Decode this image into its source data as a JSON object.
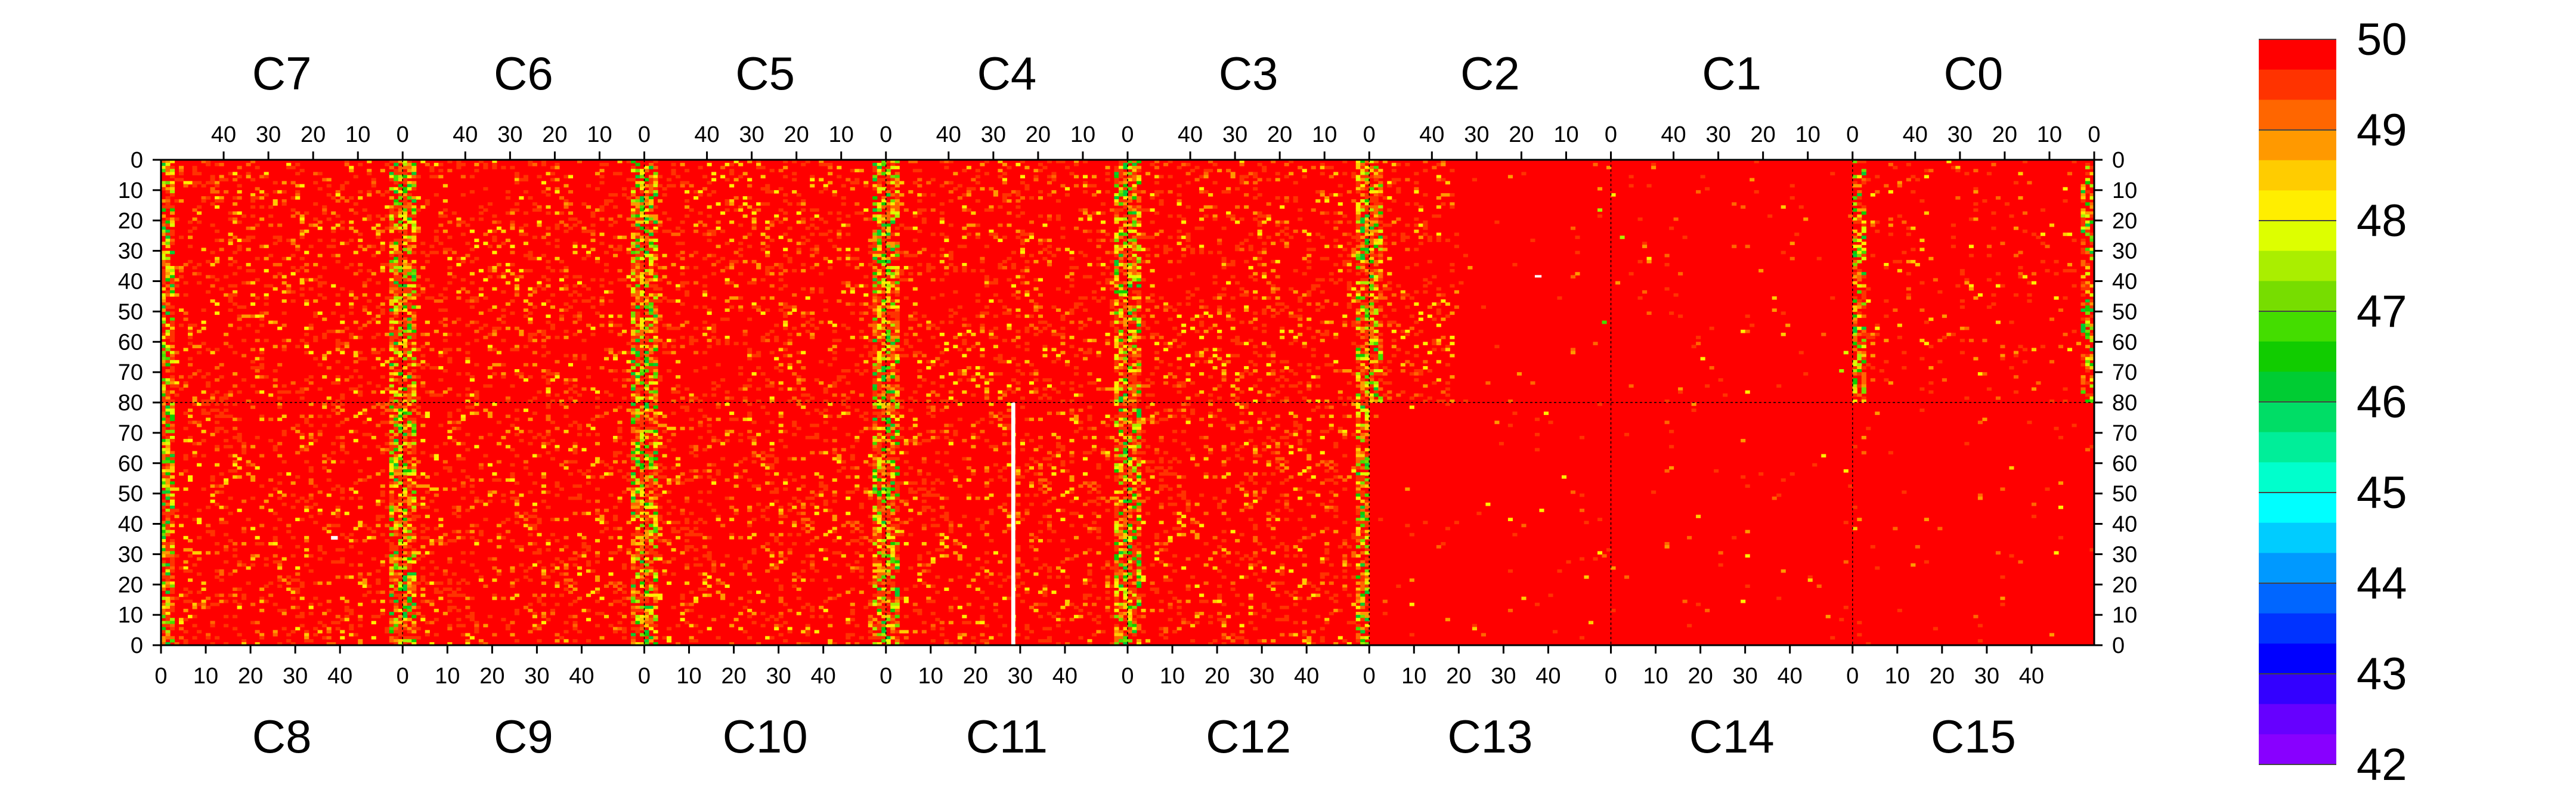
{
  "chart_data": {
    "type": "heatmap",
    "colorscale": {
      "min": 42,
      "max": 50,
      "ticks": [
        50,
        49,
        48,
        47,
        46,
        45,
        44,
        43,
        42
      ],
      "colors": [
        "#ff0000",
        "#ff3300",
        "#ff6600",
        "#ff9900",
        "#ffcc00",
        "#ffee00",
        "#ddff00",
        "#aaee00",
        "#77dd00",
        "#44dd00",
        "#11cc00",
        "#00cc33",
        "#00dd66",
        "#00ee99",
        "#00ffcc",
        "#00ffff",
        "#00ccff",
        "#0099ff",
        "#0066ff",
        "#0033ff",
        "#0000ff",
        "#3300ff",
        "#6600ff",
        "#8800ff"
      ]
    },
    "top_columns": [
      {
        "name": "C7",
        "xticks": [
          "40",
          "30",
          "20",
          "10",
          "0"
        ]
      },
      {
        "name": "C6",
        "xticks": [
          "40",
          "30",
          "20",
          "10",
          "0"
        ]
      },
      {
        "name": "C5",
        "xticks": [
          "40",
          "30",
          "20",
          "10",
          "0"
        ]
      },
      {
        "name": "C4",
        "xticks": [
          "40",
          "30",
          "20",
          "10",
          "0"
        ]
      },
      {
        "name": "C3",
        "xticks": [
          "40",
          "30",
          "20",
          "10",
          "0"
        ]
      },
      {
        "name": "C2",
        "xticks": [
          "40",
          "30",
          "20",
          "10",
          "0"
        ]
      },
      {
        "name": "C1",
        "xticks": [
          "40",
          "30",
          "20",
          "10",
          "0"
        ]
      },
      {
        "name": "C0",
        "xticks": [
          "40",
          "30",
          "20",
          "10",
          "0"
        ]
      }
    ],
    "bottom_columns": [
      {
        "name": "C8",
        "xticks": [
          "0",
          "10",
          "20",
          "30",
          "40"
        ]
      },
      {
        "name": "C9",
        "xticks": [
          "0",
          "10",
          "20",
          "30",
          "40"
        ]
      },
      {
        "name": "C10",
        "xticks": [
          "0",
          "10",
          "20",
          "30",
          "40"
        ]
      },
      {
        "name": "C11",
        "xticks": [
          "0",
          "10",
          "20",
          "30",
          "40"
        ]
      },
      {
        "name": "C12",
        "xticks": [
          "0",
          "10",
          "20",
          "30",
          "40"
        ]
      },
      {
        "name": "C13",
        "xticks": [
          "0",
          "10",
          "20",
          "30",
          "40"
        ]
      },
      {
        "name": "C14",
        "xticks": [
          "0",
          "10",
          "20",
          "30",
          "40"
        ]
      },
      {
        "name": "C15",
        "xticks": [
          "0",
          "10",
          "20",
          "30",
          "40"
        ]
      }
    ],
    "yticks_top": [
      "0",
      "10",
      "20",
      "30",
      "40",
      "50",
      "60",
      "70",
      "80"
    ],
    "yticks_bottom": [
      "80",
      "70",
      "60",
      "50",
      "40",
      "30",
      "20",
      "10",
      "0"
    ],
    "x_range_per_column": [
      0,
      54
    ],
    "y_range_per_half": [
      0,
      80
    ],
    "dominant_value": 50,
    "notes_visible": "columns C13/C14/C15 and C0/C1/C2 right part mostly saturated at 50; yellow-green stripes near column edges; blank strip in C11 near x=28"
  }
}
